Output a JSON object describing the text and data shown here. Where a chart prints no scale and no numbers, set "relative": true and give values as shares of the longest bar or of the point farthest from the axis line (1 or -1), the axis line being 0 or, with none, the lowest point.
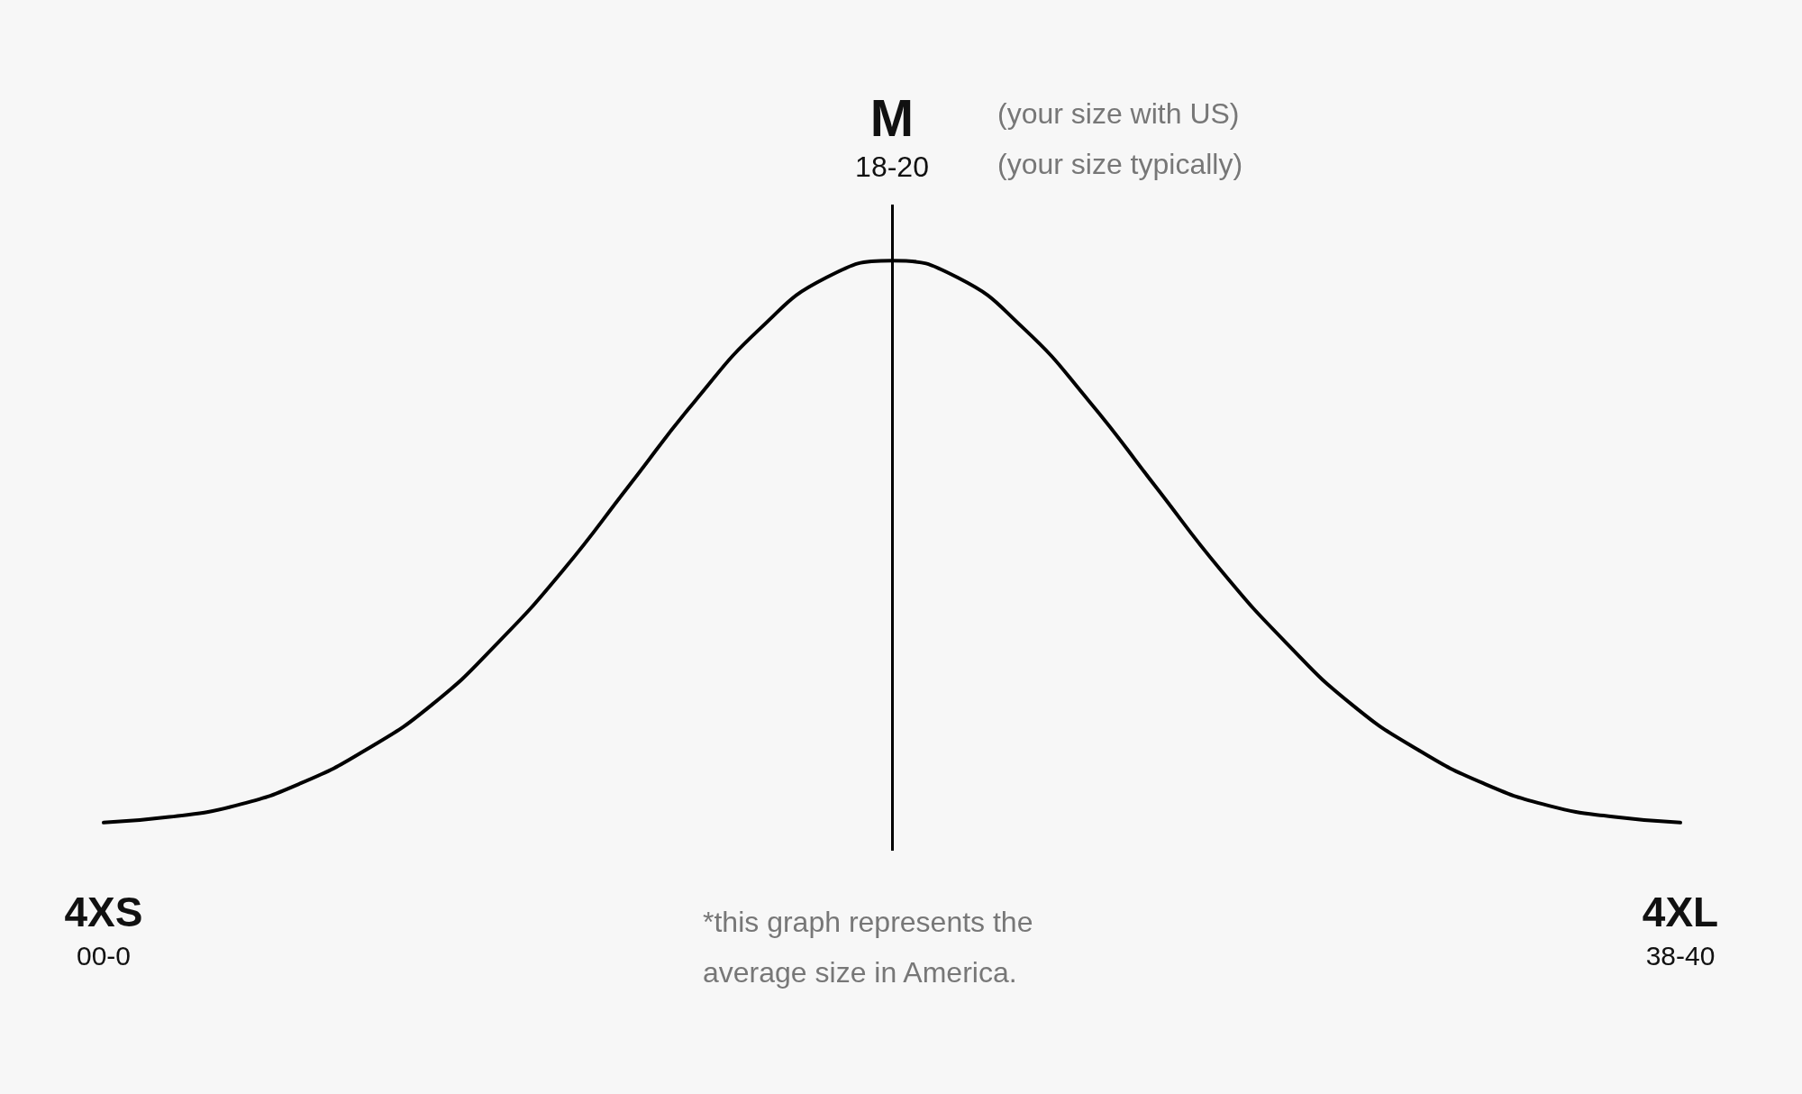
{
  "chart_data": {
    "type": "line",
    "relative": true,
    "categories": [
      "4XS\n00-0",
      null,
      null,
      null,
      null,
      null,
      null,
      null,
      null,
      null,
      null,
      null,
      "M\n18-20",
      null,
      null,
      null,
      null,
      null,
      null,
      null,
      null,
      null,
      null,
      null,
      "4XL\n38-40"
    ],
    "series": [
      {
        "color": "#000000",
        "values": [
          0,
          0.01,
          0.03,
          0.07,
          0.13,
          0.21,
          0.32,
          0.45,
          0.6,
          0.75,
          0.88,
          0.97,
          1,
          0.97,
          0.88,
          0.75,
          0.6,
          0.45,
          0.32,
          0.21,
          0.13,
          0.07,
          0.03,
          0.01,
          0
        ]
      }
    ],
    "tick_labels": "x",
    "marker": "none",
    "line_style": "solid",
    "ref_lines": [
      {
        "axis": "x",
        "value": "M\n18-20",
        "color": "#000000"
      }
    ],
    "annotations": [
      "(your size with US)",
      "(your size typically)",
      "*this graph represents the average size in America."
    ]
  }
}
